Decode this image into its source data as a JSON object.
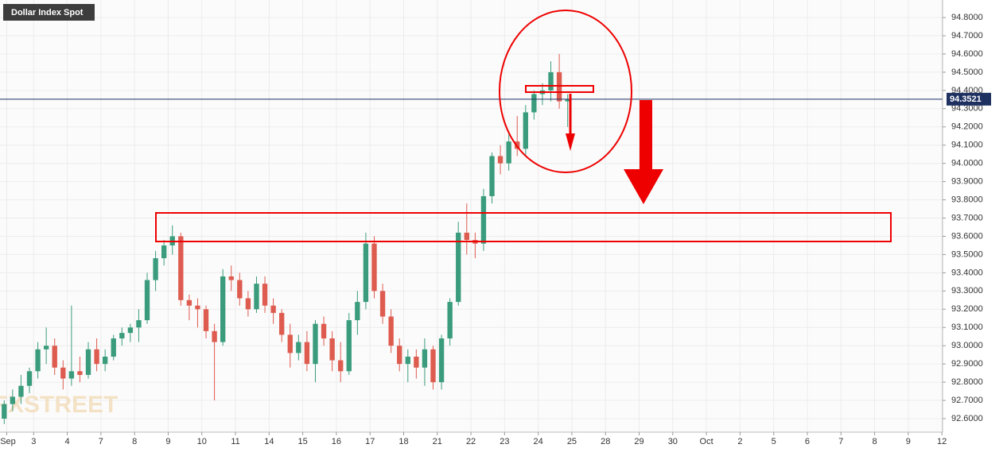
{
  "chart_data": {
    "type": "candlestick",
    "title": "Dollar Index Spot",
    "watermark": "FXSTREET",
    "x": [
      0.125,
      0.375,
      0.625,
      0.875,
      1.125,
      1.375,
      1.625,
      1.875,
      2.125,
      2.375,
      2.625,
      2.875,
      3.125,
      3.375,
      3.625,
      3.875,
      4.125,
      4.375,
      4.625,
      4.875,
      5.125,
      5.375,
      5.625,
      5.875,
      6.125,
      6.375,
      6.625,
      6.875,
      7.125,
      7.375,
      7.625,
      7.875,
      8.125,
      8.375,
      8.625,
      8.875,
      9.125,
      9.375,
      9.625,
      9.875,
      10.125,
      10.375,
      10.625,
      10.875,
      11.125,
      11.375,
      11.625,
      11.875,
      12.125,
      12.375,
      12.625,
      12.875,
      13.125,
      13.375,
      13.625,
      13.875,
      14.125,
      14.375,
      14.625,
      14.875,
      15.125,
      15.375,
      15.625,
      15.875,
      16.125,
      16.375,
      16.625,
      16.875
    ],
    "ohlc": [
      [
        92.6,
        92.7,
        92.57,
        92.68
      ],
      [
        92.68,
        92.76,
        92.64,
        92.72
      ],
      [
        92.72,
        92.84,
        92.68,
        92.78
      ],
      [
        92.78,
        92.88,
        92.74,
        92.86
      ],
      [
        92.86,
        93.02,
        92.82,
        92.98
      ],
      [
        92.98,
        93.1,
        92.9,
        93.0
      ],
      [
        93.0,
        93.04,
        92.84,
        92.88
      ],
      [
        92.88,
        92.92,
        92.76,
        92.82
      ],
      [
        92.82,
        93.22,
        92.78,
        92.86
      ],
      [
        92.86,
        92.94,
        92.8,
        92.84
      ],
      [
        92.84,
        93.02,
        92.82,
        92.98
      ],
      [
        92.98,
        93.04,
        92.86,
        92.9
      ],
      [
        92.9,
        92.98,
        92.86,
        92.94
      ],
      [
        92.94,
        93.06,
        92.92,
        93.04
      ],
      [
        93.04,
        93.1,
        93.0,
        93.07
      ],
      [
        93.07,
        93.12,
        93.02,
        93.1
      ],
      [
        93.1,
        93.2,
        93.02,
        93.14
      ],
      [
        93.14,
        93.4,
        93.12,
        93.36
      ],
      [
        93.36,
        93.52,
        93.3,
        93.48
      ],
      [
        93.48,
        93.58,
        93.44,
        93.55
      ],
      [
        93.55,
        93.66,
        93.5,
        93.6
      ],
      [
        93.6,
        93.62,
        93.22,
        93.25
      ],
      [
        93.25,
        93.28,
        93.14,
        93.22
      ],
      [
        93.22,
        93.26,
        93.1,
        93.2
      ],
      [
        93.2,
        93.22,
        93.04,
        93.08
      ],
      [
        93.08,
        93.12,
        92.7,
        93.02
      ],
      [
        93.02,
        93.42,
        93.0,
        93.38
      ],
      [
        93.38,
        93.44,
        93.3,
        93.36
      ],
      [
        93.36,
        93.4,
        93.22,
        93.26
      ],
      [
        93.26,
        93.3,
        93.16,
        93.2
      ],
      [
        93.2,
        93.38,
        93.18,
        93.34
      ],
      [
        93.34,
        93.38,
        93.18,
        93.22
      ],
      [
        93.22,
        93.26,
        93.12,
        93.18
      ],
      [
        93.18,
        93.2,
        93.02,
        93.06
      ],
      [
        93.06,
        93.12,
        92.88,
        92.96
      ],
      [
        92.96,
        93.06,
        92.92,
        93.02
      ],
      [
        93.02,
        93.08,
        92.86,
        92.9
      ],
      [
        92.9,
        93.14,
        92.8,
        93.12
      ],
      [
        93.12,
        93.16,
        93.0,
        93.04
      ],
      [
        93.04,
        93.08,
        92.86,
        92.92
      ],
      [
        92.92,
        93.02,
        92.8,
        92.86
      ],
      [
        92.86,
        93.18,
        92.84,
        93.14
      ],
      [
        93.14,
        93.3,
        93.06,
        93.24
      ],
      [
        93.24,
        93.62,
        93.2,
        93.56
      ],
      [
        93.56,
        93.6,
        93.26,
        93.3
      ],
      [
        93.3,
        93.34,
        93.12,
        93.16
      ],
      [
        93.16,
        93.2,
        92.96,
        93.0
      ],
      [
        93.0,
        93.04,
        92.86,
        92.9
      ],
      [
        92.9,
        92.98,
        92.8,
        92.94
      ],
      [
        92.94,
        92.98,
        92.82,
        92.88
      ],
      [
        92.88,
        93.04,
        92.78,
        92.98
      ],
      [
        92.98,
        93.0,
        92.76,
        92.8
      ],
      [
        92.8,
        93.06,
        92.76,
        93.04
      ],
      [
        93.04,
        93.26,
        93.0,
        93.24
      ],
      [
        93.24,
        93.68,
        93.22,
        93.62
      ],
      [
        93.62,
        93.78,
        93.5,
        93.58
      ],
      [
        93.58,
        93.62,
        93.48,
        93.56
      ],
      [
        93.56,
        93.86,
        93.52,
        93.82
      ],
      [
        93.82,
        94.06,
        93.78,
        94.04
      ],
      [
        94.04,
        94.1,
        93.94,
        94.0
      ],
      [
        94.0,
        94.16,
        93.96,
        94.12
      ],
      [
        94.12,
        94.26,
        94.04,
        94.08
      ],
      [
        94.08,
        94.32,
        94.04,
        94.28
      ],
      [
        94.28,
        94.4,
        94.24,
        94.38
      ],
      [
        94.38,
        94.44,
        94.32,
        94.4
      ],
      [
        94.4,
        94.56,
        94.34,
        94.5
      ],
      [
        94.5,
        94.6,
        94.3,
        94.34
      ],
      [
        94.34,
        94.38,
        94.2,
        94.35
      ]
    ],
    "up_color": "#3a9c7c",
    "down_color": "#de5b4f",
    "current_price": 94.3521,
    "current_color": "#1e3160",
    "ylim": [
      92.526,
      94.896
    ],
    "yticks": [
      {
        "value": 92.6,
        "label": "92.6000"
      },
      {
        "value": 92.7,
        "label": "92.7000"
      },
      {
        "value": 92.8,
        "label": "92.8000"
      },
      {
        "value": 92.9,
        "label": "92.9000"
      },
      {
        "value": 93.0,
        "label": "93.0000"
      },
      {
        "value": 93.1,
        "label": "93.1000"
      },
      {
        "value": 93.2,
        "label": "93.2000"
      },
      {
        "value": 93.3,
        "label": "93.3000"
      },
      {
        "value": 93.4,
        "label": "93.4000"
      },
      {
        "value": 93.5,
        "label": "93.5000"
      },
      {
        "value": 93.6,
        "label": "93.6000"
      },
      {
        "value": 93.7,
        "label": "93.7000"
      },
      {
        "value": 93.8,
        "label": "93.8000"
      },
      {
        "value": 93.9,
        "label": "93.9000"
      },
      {
        "value": 94.0,
        "label": "94.0000"
      },
      {
        "value": 94.1,
        "label": "94.1000"
      },
      {
        "value": 94.2,
        "label": "94.2000"
      },
      {
        "value": 94.3,
        "label": "94.3000"
      },
      {
        "value": 94.4,
        "label": "94.4000"
      },
      {
        "value": 94.5,
        "label": "94.5000"
      },
      {
        "value": 94.6,
        "label": "94.6000"
      },
      {
        "value": 94.7,
        "label": "94.7000"
      },
      {
        "value": 94.8,
        "label": "94.8000"
      }
    ],
    "xlim": [
      0,
      28.02
    ],
    "xticks": [
      {
        "value": 0.2,
        "label": "Sep"
      },
      {
        "value": 1,
        "label": "3"
      },
      {
        "value": 2,
        "label": "4"
      },
      {
        "value": 3,
        "label": "7"
      },
      {
        "value": 4,
        "label": "8"
      },
      {
        "value": 5,
        "label": "9"
      },
      {
        "value": 6,
        "label": "10"
      },
      {
        "value": 7,
        "label": "11"
      },
      {
        "value": 8,
        "label": "14"
      },
      {
        "value": 9,
        "label": "15"
      },
      {
        "value": 10,
        "label": "16"
      },
      {
        "value": 11,
        "label": "17"
      },
      {
        "value": 12,
        "label": "18"
      },
      {
        "value": 13,
        "label": "21"
      },
      {
        "value": 14,
        "label": "22"
      },
      {
        "value": 15,
        "label": "23"
      },
      {
        "value": 16,
        "label": "24"
      },
      {
        "value": 17,
        "label": "25"
      },
      {
        "value": 18,
        "label": "28"
      },
      {
        "value": 19,
        "label": "29"
      },
      {
        "value": 20,
        "label": "30"
      },
      {
        "value": 21,
        "label": "Oct"
      },
      {
        "value": 22,
        "label": "2"
      },
      {
        "value": 23,
        "label": "5"
      },
      {
        "value": 24,
        "label": "6"
      },
      {
        "value": 25,
        "label": "7"
      },
      {
        "value": 26,
        "label": "8"
      },
      {
        "value": 27,
        "label": "9"
      },
      {
        "value": 28,
        "label": "12"
      }
    ],
    "grid": true
  }
}
